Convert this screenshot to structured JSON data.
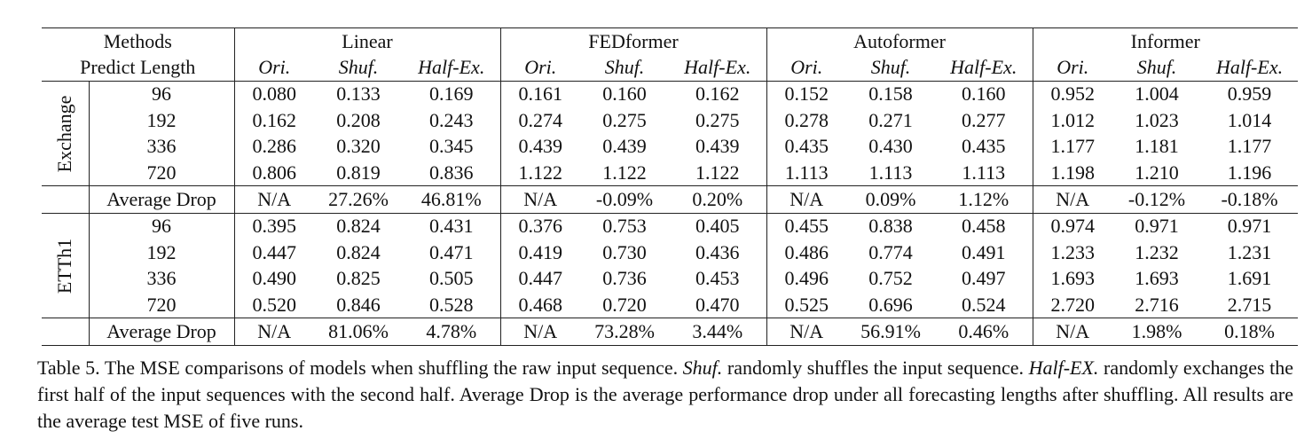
{
  "table": {
    "methods_label": "Methods",
    "predict_length_label": "Predict Length",
    "models": [
      "Linear",
      "FEDformer",
      "Autoformer",
      "Informer"
    ],
    "sub_headers": [
      "Ori.",
      "Shuf.",
      "Half-Ex."
    ],
    "groups": [
      {
        "name": "Exchange",
        "rows": [
          {
            "length": "96",
            "values": [
              "0.080",
              "0.133",
              "0.169",
              "0.161",
              "0.160",
              "0.162",
              "0.152",
              "0.158",
              "0.160",
              "0.952",
              "1.004",
              "0.959"
            ]
          },
          {
            "length": "192",
            "values": [
              "0.162",
              "0.208",
              "0.243",
              "0.274",
              "0.275",
              "0.275",
              "0.278",
              "0.271",
              "0.277",
              "1.012",
              "1.023",
              "1.014"
            ]
          },
          {
            "length": "336",
            "values": [
              "0.286",
              "0.320",
              "0.345",
              "0.439",
              "0.439",
              "0.439",
              "0.435",
              "0.430",
              "0.435",
              "1.177",
              "1.181",
              "1.177"
            ]
          },
          {
            "length": "720",
            "values": [
              "0.806",
              "0.819",
              "0.836",
              "1.122",
              "1.122",
              "1.122",
              "1.113",
              "1.113",
              "1.113",
              "1.198",
              "1.210",
              "1.196"
            ]
          }
        ],
        "avg_label": "Average Drop",
        "avg": [
          "N/A",
          "27.26%",
          "46.81%",
          "N/A",
          "-0.09%",
          "0.20%",
          "N/A",
          "0.09%",
          "1.12%",
          "N/A",
          "-0.12%",
          "-0.18%"
        ]
      },
      {
        "name": "ETTh1",
        "rows": [
          {
            "length": "96",
            "values": [
              "0.395",
              "0.824",
              "0.431",
              "0.376",
              "0.753",
              "0.405",
              "0.455",
              "0.838",
              "0.458",
              "0.974",
              "0.971",
              "0.971"
            ]
          },
          {
            "length": "192",
            "values": [
              "0.447",
              "0.824",
              "0.471",
              "0.419",
              "0.730",
              "0.436",
              "0.486",
              "0.774",
              "0.491",
              "1.233",
              "1.232",
              "1.231"
            ]
          },
          {
            "length": "336",
            "values": [
              "0.490",
              "0.825",
              "0.505",
              "0.447",
              "0.736",
              "0.453",
              "0.496",
              "0.752",
              "0.497",
              "1.693",
              "1.693",
              "1.691"
            ]
          },
          {
            "length": "720",
            "values": [
              "0.520",
              "0.846",
              "0.528",
              "0.468",
              "0.720",
              "0.470",
              "0.525",
              "0.696",
              "0.524",
              "2.720",
              "2.716",
              "2.715"
            ]
          }
        ],
        "avg_label": "Average Drop",
        "avg": [
          "N/A",
          "81.06%",
          "4.78%",
          "N/A",
          "73.28%",
          "3.44%",
          "N/A",
          "56.91%",
          "0.46%",
          "N/A",
          "1.98%",
          "0.18%"
        ]
      }
    ]
  },
  "caption": {
    "parts": [
      {
        "text": "Table 5. The MSE comparisons of models when shuffling the raw input sequence. ",
        "italic": false
      },
      {
        "text": "Shuf.",
        "italic": true
      },
      {
        "text": " randomly shuffles the input sequence. ",
        "italic": false
      },
      {
        "text": "Half-EX.",
        "italic": true
      },
      {
        "text": " randomly exchanges the first half of the input sequences with the second half. Average Drop is the average performance drop under all forecasting lengths after shuffling. All results are the average test MSE of five runs.",
        "italic": false
      }
    ]
  }
}
